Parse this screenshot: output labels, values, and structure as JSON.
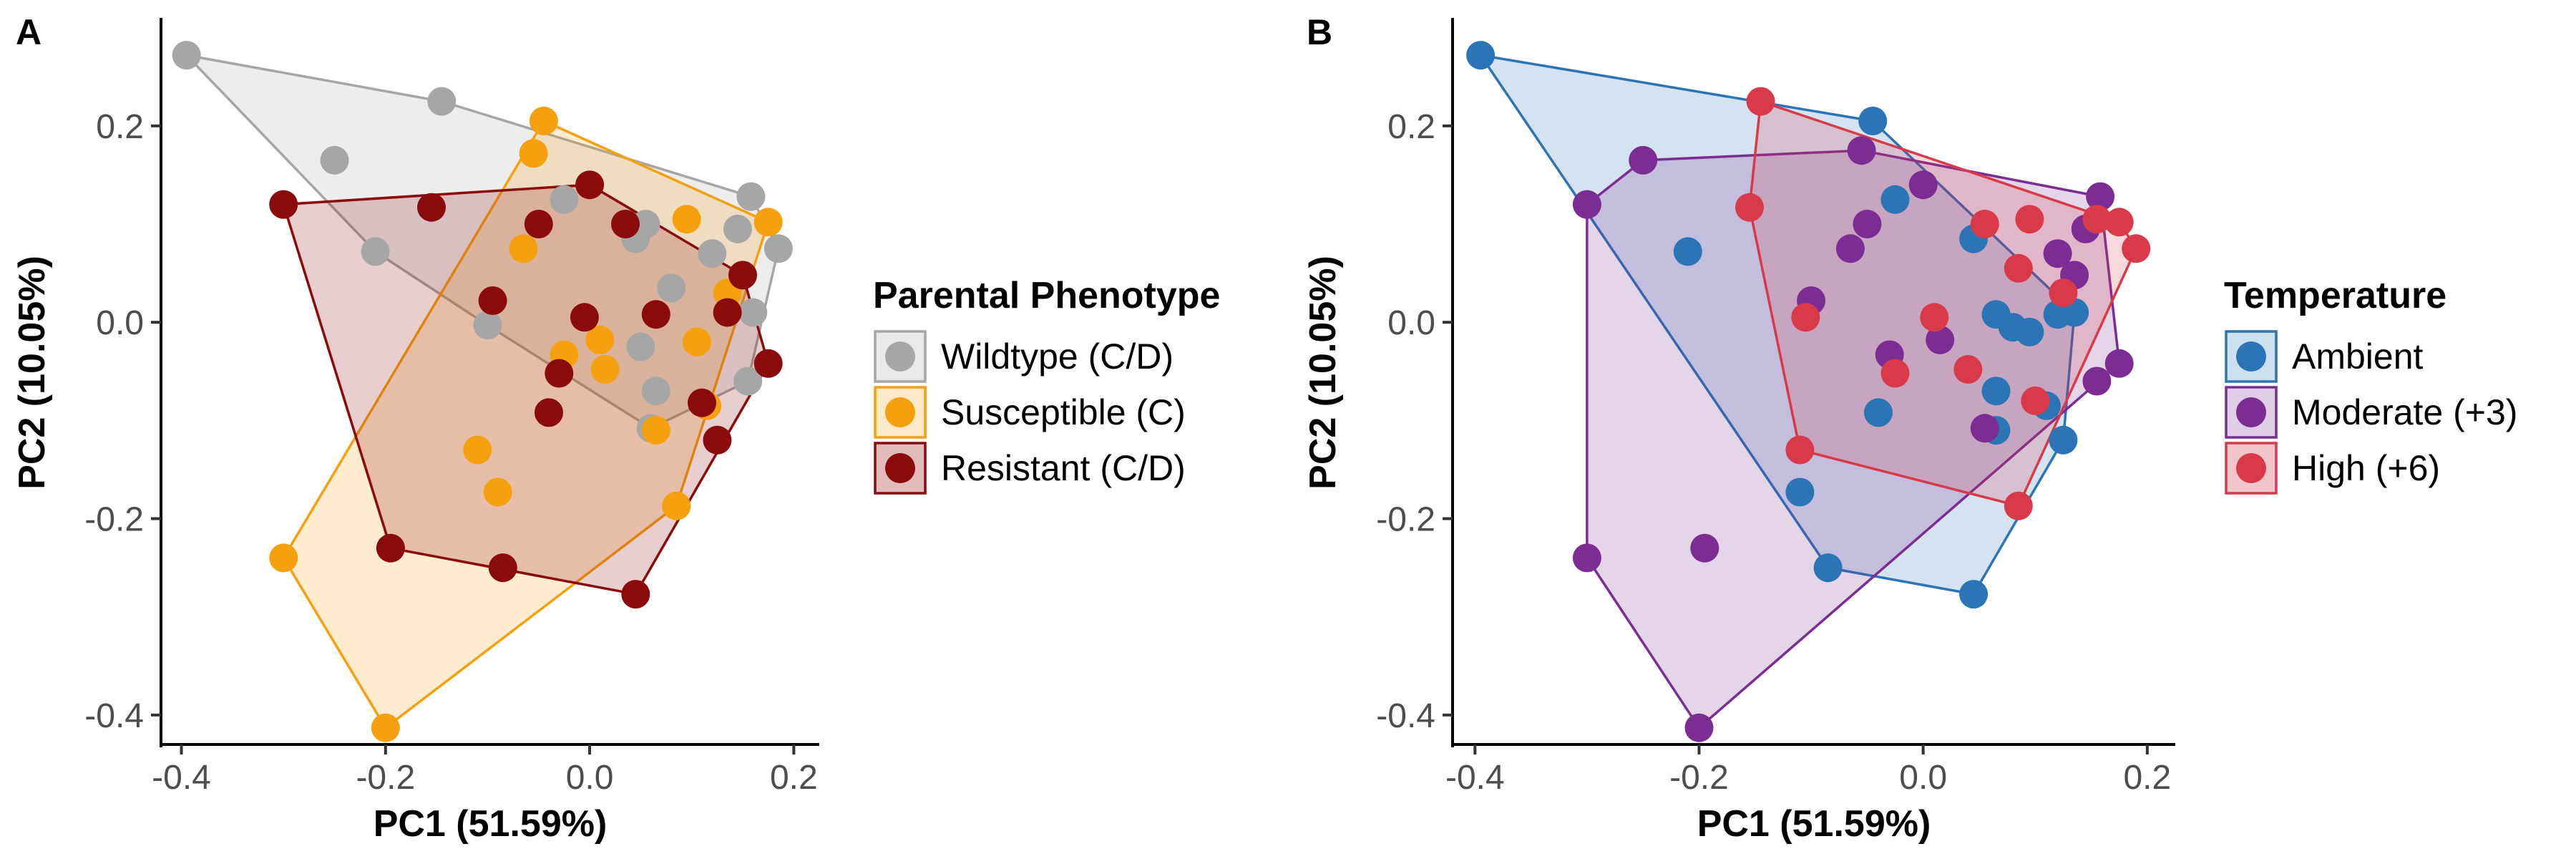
{
  "chart_data": [
    {
      "type": "scatter",
      "panel_label": "A",
      "xlabel": "PC1 (51.59%)",
      "ylabel": "PC2 (10.05%)",
      "xlim": [
        -0.42,
        0.225
      ],
      "ylim": [
        -0.43,
        0.31
      ],
      "xticks": [
        -0.4,
        -0.2,
        0.0,
        0.2
      ],
      "xtick_labels": [
        "-0.4",
        "-0.2",
        "0.0",
        "0.2"
      ],
      "yticks": [
        -0.4,
        -0.2,
        0.0,
        0.2
      ],
      "ytick_labels": [
        "-0.4",
        "-0.2",
        "0.0",
        "0.2"
      ],
      "grid": false,
      "hulls": true,
      "legend": {
        "title": "Parental Phenotype",
        "position": "right",
        "entries": [
          "Wildtype (C/D)",
          "Susceptible (C)",
          "Resistant (C/D)"
        ]
      },
      "series": [
        {
          "name": "Wildtype (C/D)",
          "color": "#a6a6a6",
          "fill": "#e9e9e9",
          "points": [
            [
              -0.395,
              0.272
            ],
            [
              -0.145,
              0.225
            ],
            [
              -0.25,
              0.165
            ],
            [
              0.158,
              0.128
            ],
            [
              -0.21,
              0.072
            ],
            [
              0.185,
              0.075
            ],
            [
              0.145,
              0.095
            ],
            [
              0.055,
              0.1
            ],
            [
              0.12,
              0.07
            ],
            [
              -0.025,
              0.125
            ],
            [
              0.045,
              0.085
            ],
            [
              0.08,
              0.035
            ],
            [
              -0.1,
              -0.003
            ],
            [
              0.16,
              0.01
            ],
            [
              0.05,
              -0.025
            ],
            [
              0.065,
              -0.07
            ],
            [
              0.155,
              -0.06
            ],
            [
              0.06,
              -0.108
            ]
          ]
        },
        {
          "name": "Susceptible (C)",
          "color": "#f5a00f",
          "fill": "#fde9c7",
          "points": [
            [
              -0.045,
              0.205
            ],
            [
              -0.055,
              0.172
            ],
            [
              0.095,
              0.105
            ],
            [
              0.175,
              0.102
            ],
            [
              -0.065,
              0.075
            ],
            [
              0.135,
              0.03
            ],
            [
              0.105,
              -0.02
            ],
            [
              0.01,
              -0.018
            ],
            [
              -0.025,
              -0.033
            ],
            [
              0.015,
              -0.048
            ],
            [
              -0.11,
              -0.13
            ],
            [
              -0.09,
              -0.173
            ],
            [
              0.065,
              -0.11
            ],
            [
              0.115,
              -0.085
            ],
            [
              0.085,
              -0.187
            ],
            [
              -0.3,
              -0.24
            ],
            [
              -0.2,
              -0.413
            ]
          ]
        },
        {
          "name": "Resistant (C/D)",
          "color": "#8b0a0a",
          "fill": "#e2bcbc",
          "points": [
            [
              -0.3,
              0.12
            ],
            [
              -0.155,
              0.117
            ],
            [
              -0.05,
              0.1
            ],
            [
              0.0,
              0.14
            ],
            [
              0.035,
              0.1
            ],
            [
              -0.095,
              0.022
            ],
            [
              -0.005,
              0.005
            ],
            [
              0.065,
              0.008
            ],
            [
              0.15,
              0.048
            ],
            [
              0.135,
              0.01
            ],
            [
              -0.03,
              -0.052
            ],
            [
              -0.04,
              -0.092
            ],
            [
              0.11,
              -0.082
            ],
            [
              0.125,
              -0.12
            ],
            [
              0.175,
              -0.042
            ],
            [
              -0.195,
              -0.23
            ],
            [
              -0.085,
              -0.25
            ],
            [
              0.045,
              -0.277
            ]
          ]
        }
      ]
    },
    {
      "type": "scatter",
      "panel_label": "B",
      "xlabel": "PC1 (51.59%)",
      "ylabel": "PC2 (10.05%)",
      "xlim": [
        -0.42,
        0.225
      ],
      "ylim": [
        -0.43,
        0.31
      ],
      "xticks": [
        -0.4,
        -0.2,
        0.0,
        0.2
      ],
      "xtick_labels": [
        "-0.4",
        "-0.2",
        "0.0",
        "0.2"
      ],
      "yticks": [
        -0.4,
        -0.2,
        0.0,
        0.2
      ],
      "ytick_labels": [
        "-0.4",
        "-0.2",
        "0.0",
        "0.2"
      ],
      "grid": false,
      "hulls": true,
      "legend": {
        "title": "Temperature",
        "position": "right",
        "entries": [
          "Ambient",
          "Moderate (+3)",
          "High (+6)"
        ]
      },
      "series": [
        {
          "name": "Ambient",
          "color": "#2b74b6",
          "fill": "#cde0ee",
          "points": [
            [
              -0.395,
              0.272
            ],
            [
              -0.045,
              0.205
            ],
            [
              -0.21,
              0.072
            ],
            [
              -0.025,
              0.125
            ],
            [
              0.045,
              0.085
            ],
            [
              0.065,
              0.008
            ],
            [
              0.08,
              -0.005
            ],
            [
              0.095,
              -0.01
            ],
            [
              0.12,
              0.008
            ],
            [
              0.135,
              0.01
            ],
            [
              0.065,
              -0.07
            ],
            [
              0.11,
              -0.085
            ],
            [
              0.125,
              -0.12
            ],
            [
              0.065,
              -0.11
            ],
            [
              -0.11,
              -0.173
            ],
            [
              -0.085,
              -0.25
            ],
            [
              0.045,
              -0.277
            ],
            [
              -0.04,
              -0.092
            ]
          ]
        },
        {
          "name": "Moderate (+3)",
          "color": "#7b2d93",
          "fill": "#e0cde6",
          "points": [
            [
              -0.3,
              0.12
            ],
            [
              -0.25,
              0.165
            ],
            [
              -0.055,
              0.175
            ],
            [
              -0.05,
              0.1
            ],
            [
              0.0,
              0.14
            ],
            [
              -0.065,
              0.075
            ],
            [
              0.158,
              0.128
            ],
            [
              0.145,
              0.095
            ],
            [
              0.12,
              0.07
            ],
            [
              0.135,
              0.048
            ],
            [
              -0.1,
              0.022
            ],
            [
              -0.03,
              -0.033
            ],
            [
              0.015,
              -0.018
            ],
            [
              0.175,
              -0.042
            ],
            [
              0.155,
              -0.06
            ],
            [
              0.055,
              -0.108
            ],
            [
              -0.3,
              -0.24
            ],
            [
              -0.195,
              -0.23
            ],
            [
              -0.2,
              -0.413
            ]
          ]
        },
        {
          "name": "High (+6)",
          "color": "#d93a4a",
          "fill": "#f1c5cc",
          "points": [
            [
              -0.145,
              0.225
            ],
            [
              -0.155,
              0.117
            ],
            [
              0.055,
              0.1
            ],
            [
              0.095,
              0.105
            ],
            [
              0.155,
              0.105
            ],
            [
              0.175,
              0.102
            ],
            [
              0.19,
              0.075
            ],
            [
              0.085,
              0.055
            ],
            [
              0.125,
              0.03
            ],
            [
              -0.105,
              0.005
            ],
            [
              0.01,
              0.005
            ],
            [
              -0.025,
              -0.052
            ],
            [
              0.04,
              -0.048
            ],
            [
              0.1,
              -0.08
            ],
            [
              -0.11,
              -0.13
            ],
            [
              0.085,
              -0.187
            ]
          ]
        }
      ]
    }
  ]
}
